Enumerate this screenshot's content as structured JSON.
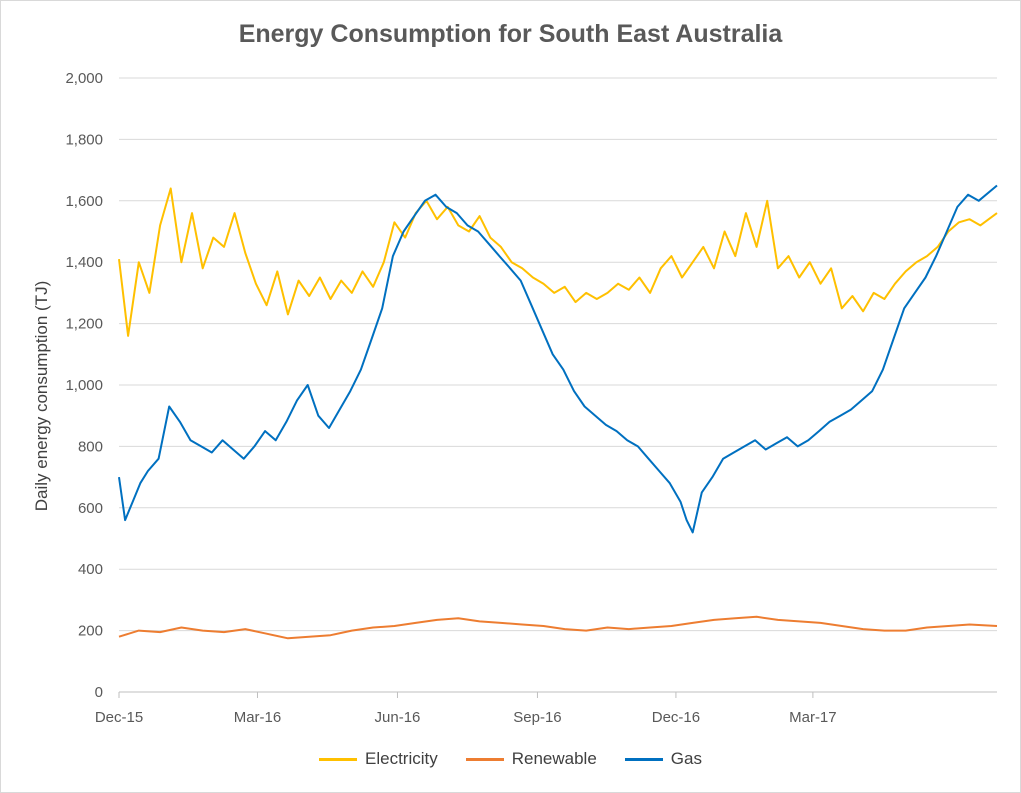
{
  "chart_data": {
    "type": "line",
    "title": "Energy Consumption for South East Australia",
    "ylabel": "Daily energy consumption (TJ)",
    "xlabel": "",
    "ylim": [
      0,
      2000
    ],
    "y_ticks": [
      "0",
      "200",
      "400",
      "600",
      "800",
      "1,000",
      "1,200",
      "1,400",
      "1,600",
      "1,800",
      "2,000"
    ],
    "x_ticks": [
      "Dec-15",
      "Mar-16",
      "Jun-16",
      "Sep-16",
      "Dec-16",
      "Mar-17"
    ],
    "grid": "horizontal",
    "legend_position": "bottom",
    "x_start": "2015-12-01",
    "x_end": "2017-06-30",
    "series": [
      {
        "name": "Electricity",
        "color": "#ffc000",
        "points": [
          [
            "2015-12-01",
            1410
          ],
          [
            "2015-12-07",
            1160
          ],
          [
            "2015-12-14",
            1400
          ],
          [
            "2015-12-21",
            1300
          ],
          [
            "2015-12-28",
            1520
          ],
          [
            "2016-01-04",
            1640
          ],
          [
            "2016-01-11",
            1400
          ],
          [
            "2016-01-18",
            1560
          ],
          [
            "2016-01-25",
            1380
          ],
          [
            "2016-02-01",
            1480
          ],
          [
            "2016-02-08",
            1450
          ],
          [
            "2016-02-15",
            1560
          ],
          [
            "2016-02-22",
            1430
          ],
          [
            "2016-02-29",
            1330
          ],
          [
            "2016-03-07",
            1260
          ],
          [
            "2016-03-14",
            1370
          ],
          [
            "2016-03-21",
            1230
          ],
          [
            "2016-03-28",
            1340
          ],
          [
            "2016-04-04",
            1290
          ],
          [
            "2016-04-11",
            1350
          ],
          [
            "2016-04-18",
            1280
          ],
          [
            "2016-04-25",
            1340
          ],
          [
            "2016-05-02",
            1300
          ],
          [
            "2016-05-09",
            1370
          ],
          [
            "2016-05-16",
            1320
          ],
          [
            "2016-05-23",
            1400
          ],
          [
            "2016-05-30",
            1530
          ],
          [
            "2016-06-06",
            1480
          ],
          [
            "2016-06-13",
            1560
          ],
          [
            "2016-06-20",
            1600
          ],
          [
            "2016-06-27",
            1540
          ],
          [
            "2016-07-04",
            1580
          ],
          [
            "2016-07-11",
            1520
          ],
          [
            "2016-07-18",
            1500
          ],
          [
            "2016-07-25",
            1550
          ],
          [
            "2016-08-01",
            1480
          ],
          [
            "2016-08-08",
            1450
          ],
          [
            "2016-08-15",
            1400
          ],
          [
            "2016-08-22",
            1380
          ],
          [
            "2016-08-29",
            1350
          ],
          [
            "2016-09-05",
            1330
          ],
          [
            "2016-09-12",
            1300
          ],
          [
            "2016-09-19",
            1320
          ],
          [
            "2016-09-26",
            1270
          ],
          [
            "2016-10-03",
            1300
          ],
          [
            "2016-10-10",
            1280
          ],
          [
            "2016-10-17",
            1300
          ],
          [
            "2016-10-24",
            1330
          ],
          [
            "2016-10-31",
            1310
          ],
          [
            "2016-11-07",
            1350
          ],
          [
            "2016-11-14",
            1300
          ],
          [
            "2016-11-21",
            1380
          ],
          [
            "2016-11-28",
            1420
          ],
          [
            "2016-12-05",
            1350
          ],
          [
            "2016-12-12",
            1400
          ],
          [
            "2016-12-19",
            1450
          ],
          [
            "2016-12-26",
            1380
          ],
          [
            "2017-01-02",
            1500
          ],
          [
            "2017-01-09",
            1420
          ],
          [
            "2017-01-16",
            1560
          ],
          [
            "2017-01-23",
            1450
          ],
          [
            "2017-01-30",
            1600
          ],
          [
            "2017-02-06",
            1380
          ],
          [
            "2017-02-13",
            1420
          ],
          [
            "2017-02-20",
            1350
          ],
          [
            "2017-02-27",
            1400
          ],
          [
            "2017-03-06",
            1330
          ],
          [
            "2017-03-13",
            1380
          ],
          [
            "2017-03-20",
            1250
          ],
          [
            "2017-03-27",
            1290
          ],
          [
            "2017-04-03",
            1240
          ],
          [
            "2017-04-10",
            1300
          ],
          [
            "2017-04-17",
            1280
          ],
          [
            "2017-04-24",
            1330
          ],
          [
            "2017-05-01",
            1370
          ],
          [
            "2017-05-08",
            1400
          ],
          [
            "2017-05-15",
            1420
          ],
          [
            "2017-05-22",
            1450
          ],
          [
            "2017-05-29",
            1500
          ],
          [
            "2017-06-05",
            1530
          ],
          [
            "2017-06-12",
            1540
          ],
          [
            "2017-06-19",
            1520
          ],
          [
            "2017-06-30",
            1560
          ]
        ]
      },
      {
        "name": "Renewable",
        "color": "#ed7d31",
        "points": [
          [
            "2015-12-01",
            180
          ],
          [
            "2015-12-14",
            200
          ],
          [
            "2015-12-28",
            195
          ],
          [
            "2016-01-11",
            210
          ],
          [
            "2016-01-25",
            200
          ],
          [
            "2016-02-08",
            195
          ],
          [
            "2016-02-22",
            205
          ],
          [
            "2016-03-07",
            190
          ],
          [
            "2016-03-21",
            175
          ],
          [
            "2016-04-04",
            180
          ],
          [
            "2016-04-18",
            185
          ],
          [
            "2016-05-02",
            200
          ],
          [
            "2016-05-16",
            210
          ],
          [
            "2016-05-30",
            215
          ],
          [
            "2016-06-13",
            225
          ],
          [
            "2016-06-27",
            235
          ],
          [
            "2016-07-11",
            240
          ],
          [
            "2016-07-25",
            230
          ],
          [
            "2016-08-08",
            225
          ],
          [
            "2016-08-22",
            220
          ],
          [
            "2016-09-05",
            215
          ],
          [
            "2016-09-19",
            205
          ],
          [
            "2016-10-03",
            200
          ],
          [
            "2016-10-17",
            210
          ],
          [
            "2016-10-31",
            205
          ],
          [
            "2016-11-14",
            210
          ],
          [
            "2016-11-28",
            215
          ],
          [
            "2016-12-12",
            225
          ],
          [
            "2016-12-26",
            235
          ],
          [
            "2017-01-09",
            240
          ],
          [
            "2017-01-23",
            245
          ],
          [
            "2017-02-06",
            235
          ],
          [
            "2017-02-20",
            230
          ],
          [
            "2017-03-06",
            225
          ],
          [
            "2017-03-20",
            215
          ],
          [
            "2017-04-03",
            205
          ],
          [
            "2017-04-17",
            200
          ],
          [
            "2017-05-01",
            200
          ],
          [
            "2017-05-15",
            210
          ],
          [
            "2017-05-29",
            215
          ],
          [
            "2017-06-12",
            220
          ],
          [
            "2017-06-30",
            215
          ]
        ]
      },
      {
        "name": "Gas",
        "color": "#0070c0",
        "points": [
          [
            "2015-12-01",
            700
          ],
          [
            "2015-12-05",
            560
          ],
          [
            "2015-12-10",
            620
          ],
          [
            "2015-12-15",
            680
          ],
          [
            "2015-12-20",
            720
          ],
          [
            "2015-12-27",
            760
          ],
          [
            "2016-01-03",
            930
          ],
          [
            "2016-01-10",
            880
          ],
          [
            "2016-01-17",
            820
          ],
          [
            "2016-01-24",
            800
          ],
          [
            "2016-01-31",
            780
          ],
          [
            "2016-02-07",
            820
          ],
          [
            "2016-02-14",
            790
          ],
          [
            "2016-02-21",
            760
          ],
          [
            "2016-02-28",
            800
          ],
          [
            "2016-03-06",
            850
          ],
          [
            "2016-03-13",
            820
          ],
          [
            "2016-03-20",
            880
          ],
          [
            "2016-03-27",
            950
          ],
          [
            "2016-04-03",
            1000
          ],
          [
            "2016-04-10",
            900
          ],
          [
            "2016-04-17",
            860
          ],
          [
            "2016-04-24",
            920
          ],
          [
            "2016-05-01",
            980
          ],
          [
            "2016-05-08",
            1050
          ],
          [
            "2016-05-15",
            1150
          ],
          [
            "2016-05-22",
            1250
          ],
          [
            "2016-05-29",
            1420
          ],
          [
            "2016-06-05",
            1500
          ],
          [
            "2016-06-12",
            1550
          ],
          [
            "2016-06-19",
            1600
          ],
          [
            "2016-06-26",
            1620
          ],
          [
            "2016-07-03",
            1580
          ],
          [
            "2016-07-10",
            1560
          ],
          [
            "2016-07-17",
            1520
          ],
          [
            "2016-07-24",
            1500
          ],
          [
            "2016-07-31",
            1460
          ],
          [
            "2016-08-07",
            1420
          ],
          [
            "2016-08-14",
            1380
          ],
          [
            "2016-08-21",
            1340
          ],
          [
            "2016-08-28",
            1260
          ],
          [
            "2016-09-04",
            1180
          ],
          [
            "2016-09-11",
            1100
          ],
          [
            "2016-09-18",
            1050
          ],
          [
            "2016-09-25",
            980
          ],
          [
            "2016-10-02",
            930
          ],
          [
            "2016-10-09",
            900
          ],
          [
            "2016-10-16",
            870
          ],
          [
            "2016-10-23",
            850
          ],
          [
            "2016-10-30",
            820
          ],
          [
            "2016-11-06",
            800
          ],
          [
            "2016-11-13",
            760
          ],
          [
            "2016-11-20",
            720
          ],
          [
            "2016-11-27",
            680
          ],
          [
            "2016-12-04",
            620
          ],
          [
            "2016-12-08",
            560
          ],
          [
            "2016-12-12",
            520
          ],
          [
            "2016-12-18",
            650
          ],
          [
            "2016-12-25",
            700
          ],
          [
            "2017-01-01",
            760
          ],
          [
            "2017-01-08",
            780
          ],
          [
            "2017-01-15",
            800
          ],
          [
            "2017-01-22",
            820
          ],
          [
            "2017-01-29",
            790
          ],
          [
            "2017-02-05",
            810
          ],
          [
            "2017-02-12",
            830
          ],
          [
            "2017-02-19",
            800
          ],
          [
            "2017-02-26",
            820
          ],
          [
            "2017-03-05",
            850
          ],
          [
            "2017-03-12",
            880
          ],
          [
            "2017-03-19",
            900
          ],
          [
            "2017-03-26",
            920
          ],
          [
            "2017-04-02",
            950
          ],
          [
            "2017-04-09",
            980
          ],
          [
            "2017-04-16",
            1050
          ],
          [
            "2017-04-23",
            1150
          ],
          [
            "2017-04-30",
            1250
          ],
          [
            "2017-05-07",
            1300
          ],
          [
            "2017-05-14",
            1350
          ],
          [
            "2017-05-21",
            1420
          ],
          [
            "2017-05-28",
            1500
          ],
          [
            "2017-06-04",
            1580
          ],
          [
            "2017-06-11",
            1620
          ],
          [
            "2017-06-18",
            1600
          ],
          [
            "2017-06-30",
            1650
          ]
        ]
      }
    ]
  }
}
